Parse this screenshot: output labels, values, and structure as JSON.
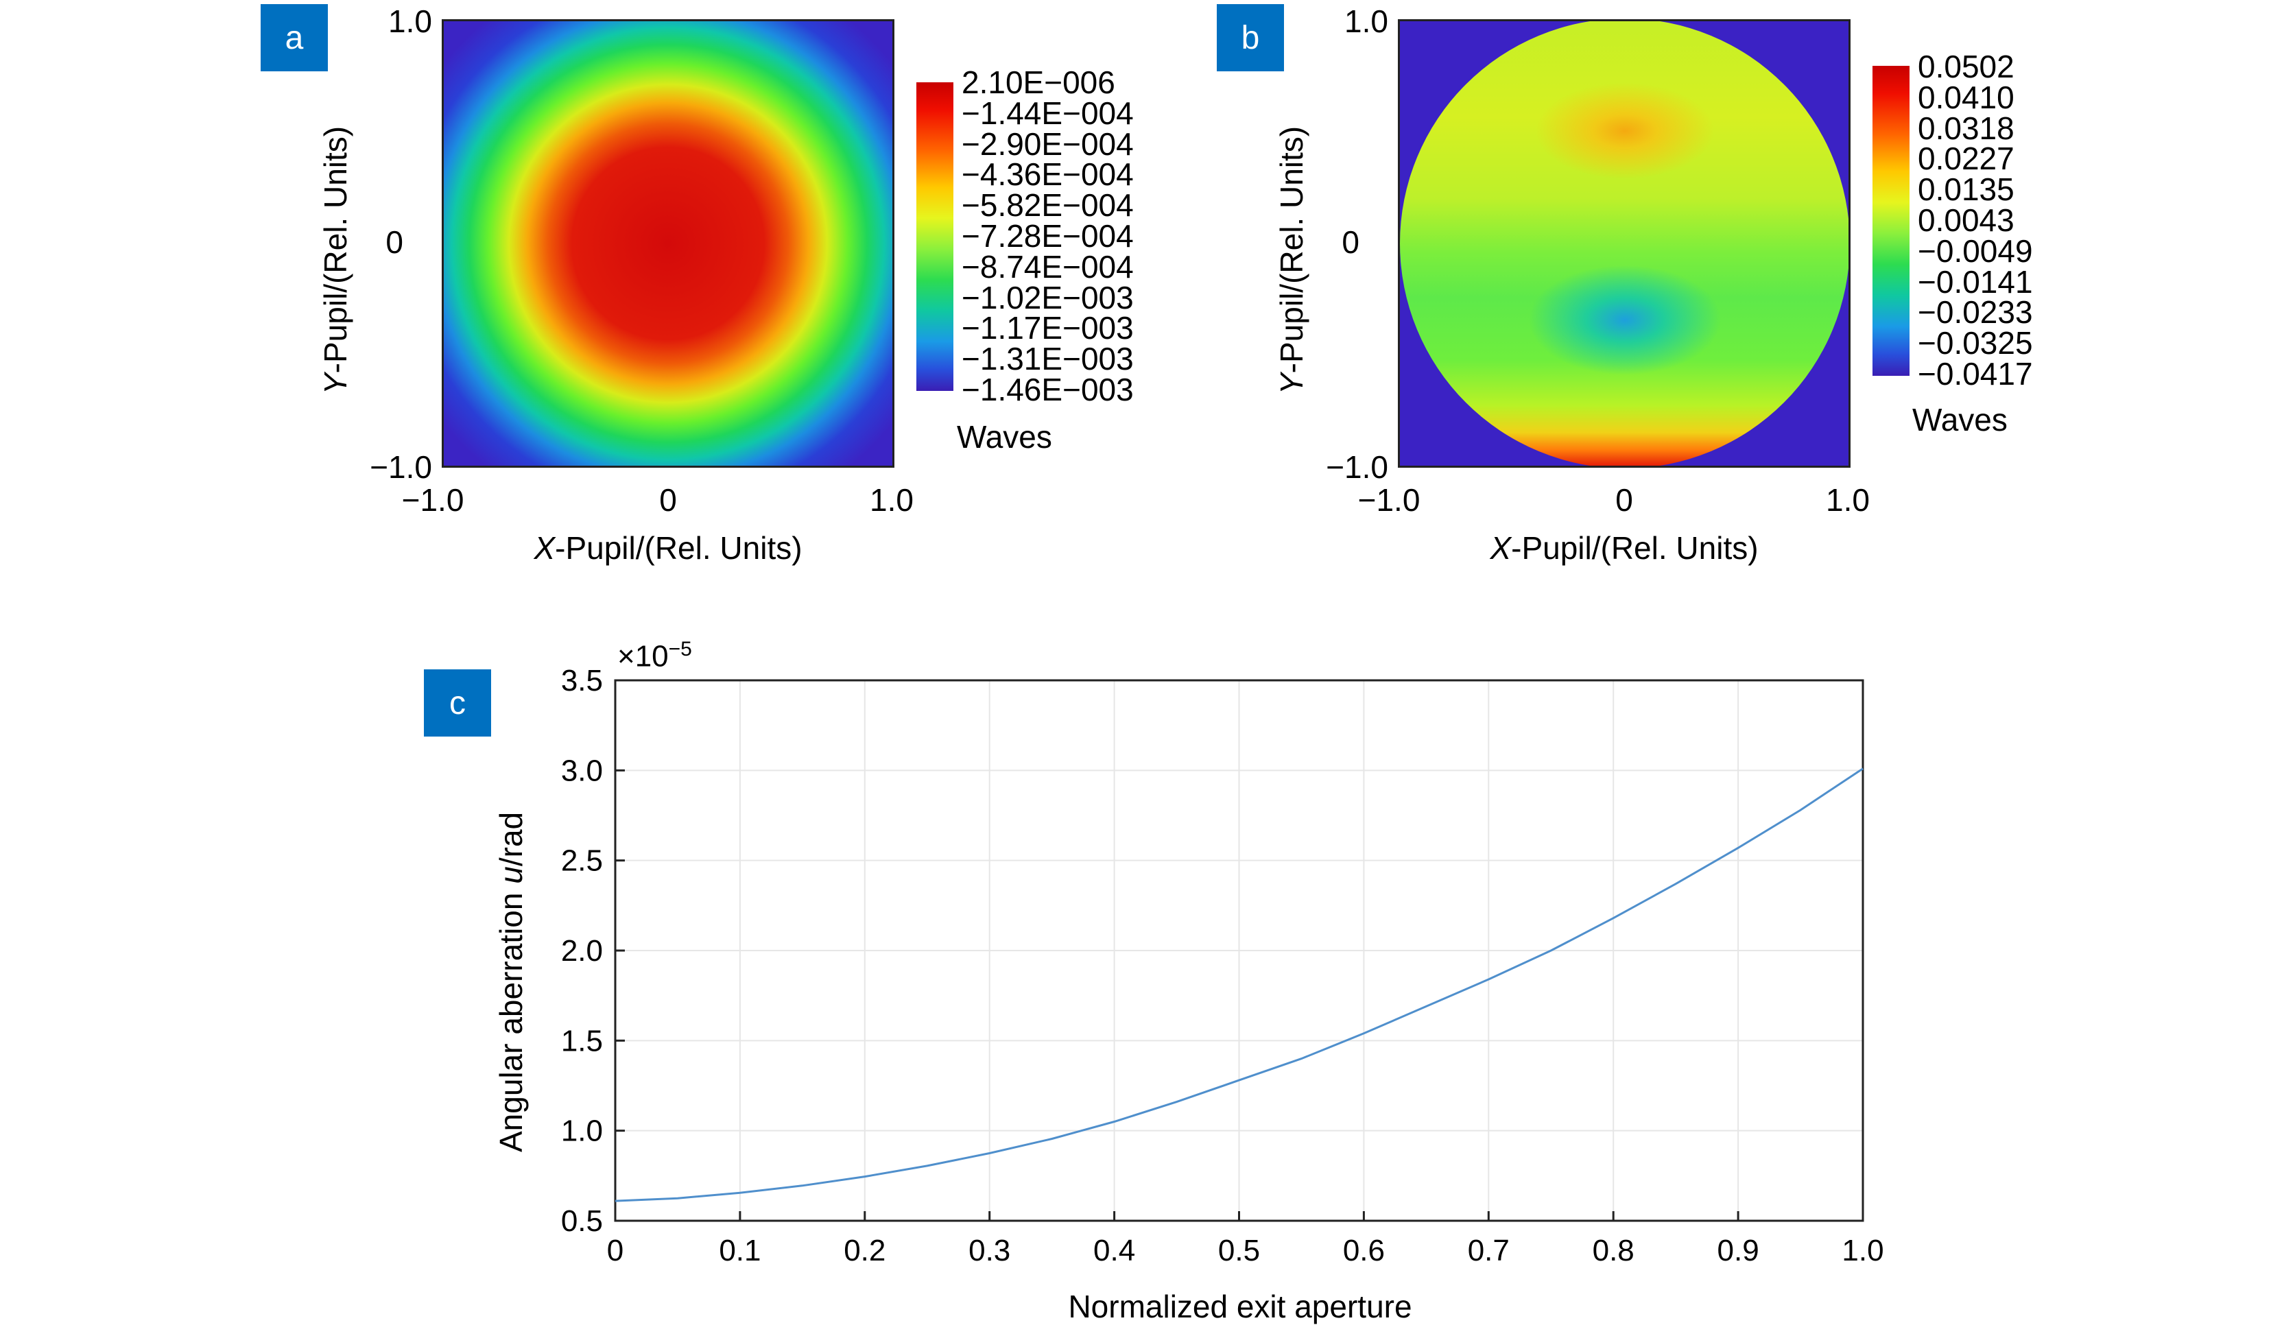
{
  "panels": {
    "a": {
      "badge": "a",
      "x_ticks": [
        "−1.0",
        "0",
        "1.0"
      ],
      "y_ticks": [
        "1.0",
        "0",
        "−1.0"
      ],
      "x_label_italic": "X",
      "x_label_rest": "-Pupil/(Rel. Units)",
      "y_label_italic": "Y",
      "y_label_rest": "-Pupil/(Rel. Units)",
      "colorbar_ticks": [
        "2.10E−006",
        "−1.44E−004",
        "−2.90E−004",
        "−4.36E−004",
        "−5.82E−004",
        "−7.28E−004",
        "−8.74E−004",
        "−1.02E−003",
        "−1.17E−003",
        "−1.31E−003",
        "−1.46E−003"
      ],
      "colorbar_unit": "Waves"
    },
    "b": {
      "badge": "b",
      "x_ticks": [
        "−1.0",
        "0",
        "1.0"
      ],
      "y_ticks": [
        "1.0",
        "0",
        "−1.0"
      ],
      "x_label_italic": "X",
      "x_label_rest": "-Pupil/(Rel. Units)",
      "y_label_italic": "Y",
      "y_label_rest": "-Pupil/(Rel. Units)",
      "colorbar_ticks": [
        "0.0502",
        "0.0410",
        "0.0318",
        "0.0227",
        "0.0135",
        "0.0043",
        "−0.0049",
        "−0.0141",
        "−0.0233",
        "−0.0325",
        "−0.0417"
      ],
      "colorbar_unit": "Waves"
    },
    "c": {
      "badge": "c",
      "exponent": "×10",
      "exponent_power": "−5",
      "y_label_main": "Angular aberration ",
      "y_label_italic": "u",
      "y_label_unit": "/rad",
      "x_label": "Normalized exit aperture"
    }
  },
  "chart_data": [
    {
      "type": "heatmap",
      "panel": "a",
      "quantity": "wavefront",
      "xlim": [
        -1.0,
        1.0
      ],
      "ylim": [
        -1.0,
        1.0
      ],
      "colorbar_range": [
        -0.00146,
        2.1e-06
      ],
      "colorbar_unit": "Waves",
      "colormap": "jet",
      "description_values": {
        "center": 2.1e-06,
        "corners": -0.00146
      }
    },
    {
      "type": "heatmap",
      "panel": "b",
      "quantity": "wavefront",
      "xlim": [
        -1.0,
        1.0
      ],
      "ylim": [
        -1.0,
        1.0
      ],
      "colorbar_range": [
        -0.0417,
        0.0502
      ],
      "colorbar_unit": "Waves",
      "colormap": "jet",
      "circular_pupil": true
    },
    {
      "type": "line",
      "panel": "c",
      "x": [
        0,
        0.05,
        0.1,
        0.15,
        0.2,
        0.25,
        0.3,
        0.35,
        0.4,
        0.45,
        0.5,
        0.55,
        0.6,
        0.65,
        0.7,
        0.75,
        0.8,
        0.85,
        0.9,
        0.95,
        1.0
      ],
      "y": [
        0.61,
        0.625,
        0.655,
        0.695,
        0.745,
        0.805,
        0.875,
        0.955,
        1.05,
        1.16,
        1.28,
        1.4,
        1.54,
        1.69,
        1.84,
        2.0,
        2.18,
        2.37,
        2.57,
        2.78,
        3.01
      ],
      "xlim": [
        0,
        1.0
      ],
      "ylim": [
        0.5,
        3.5
      ],
      "x_ticks": [
        "0",
        "0.1",
        "0.2",
        "0.3",
        "0.4",
        "0.5",
        "0.6",
        "0.7",
        "0.8",
        "0.9",
        "1.0"
      ],
      "y_ticks": [
        "3.5",
        "3.0",
        "2.5",
        "2.0",
        "1.5",
        "1.0",
        "0.5"
      ],
      "y_scale_multiplier": "×10^−5",
      "grid": true,
      "line_color": "#4f8fcc"
    }
  ]
}
